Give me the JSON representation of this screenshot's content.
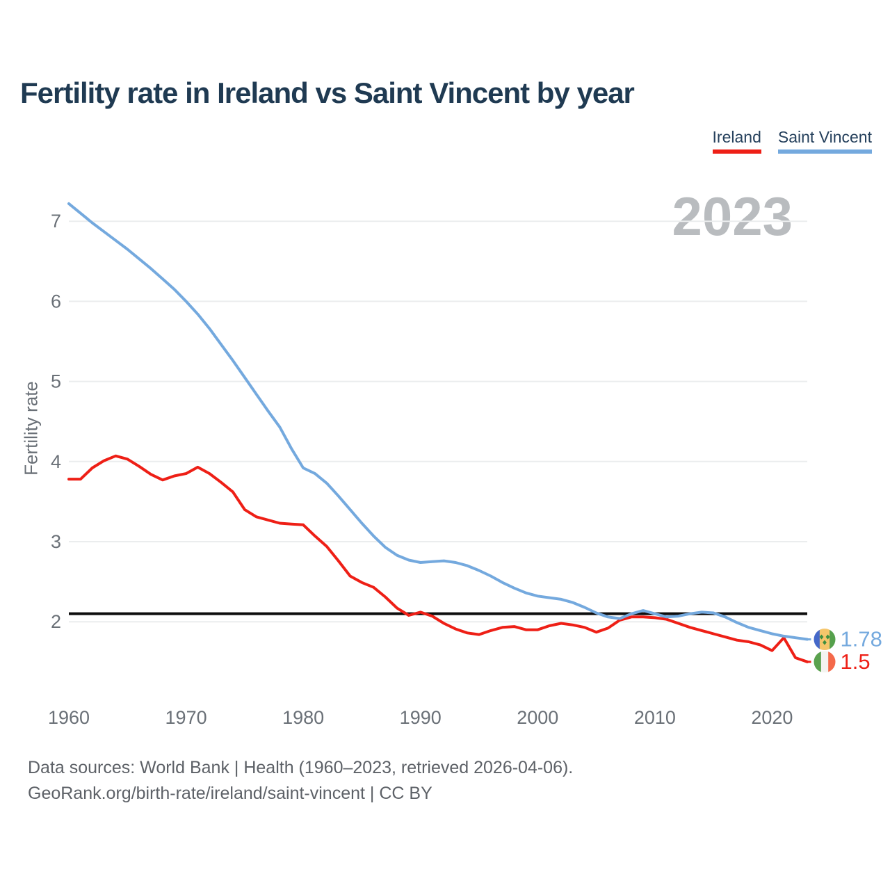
{
  "legend": {
    "items": [
      {
        "label": "Ireland",
        "color": "#ee1f16"
      },
      {
        "label": "Saint Vincent",
        "color": "#74a9de"
      }
    ]
  },
  "watermark": "2023",
  "footer": {
    "line1": "Data sources: World Bank | Health (1960–2023, retrieved 2026-04-06).",
    "line2": "GeoRank.org/birth-rate/ireland/saint-vincent | CC BY"
  },
  "end_labels": [
    {
      "series": "Saint Vincent",
      "value": "1.78",
      "color": "#74a9de",
      "flag_icon": "saint-vincent-flag-icon",
      "flag": {
        "stripes": [
          "#4468c9",
          "#f6c66b",
          "#55a04c"
        ],
        "widths": [
          0.27,
          0.46,
          0.27
        ],
        "diamond_color": "#3e8e3f"
      }
    },
    {
      "series": "Ireland",
      "value": "1.5",
      "color": "#ee1f16",
      "flag_icon": "ireland-flag-icon",
      "flag": {
        "stripes": [
          "#5aa14e",
          "#f4f4f1",
          "#f4694a"
        ],
        "widths": [
          0.333,
          0.334,
          0.333
        ]
      }
    }
  ],
  "chart_data": {
    "type": "line",
    "title": "Fertility rate in Ireland vs Saint Vincent by year",
    "xlabel": "",
    "ylabel": "Fertility rate",
    "xlim": [
      1960,
      2023
    ],
    "ylim": [
      1.4,
      7.35
    ],
    "grid": "horizontal",
    "legend_position": "top-right",
    "yticks": [
      2,
      3,
      4,
      5,
      6,
      7
    ],
    "xticks": [
      1960,
      1970,
      1980,
      1990,
      2000,
      2010,
      2020
    ],
    "reference_line": {
      "value": 2.1,
      "color": "#0d0d0d"
    },
    "x": [
      1960,
      1961,
      1962,
      1963,
      1964,
      1965,
      1966,
      1967,
      1968,
      1969,
      1970,
      1971,
      1972,
      1973,
      1974,
      1975,
      1976,
      1977,
      1978,
      1979,
      1980,
      1981,
      1982,
      1983,
      1984,
      1985,
      1986,
      1987,
      1988,
      1989,
      1990,
      1991,
      1992,
      1993,
      1994,
      1995,
      1996,
      1997,
      1998,
      1999,
      2000,
      2001,
      2002,
      2003,
      2004,
      2005,
      2006,
      2007,
      2008,
      2009,
      2010,
      2011,
      2012,
      2013,
      2014,
      2015,
      2016,
      2017,
      2018,
      2019,
      2020,
      2021,
      2022,
      2023
    ],
    "series": [
      {
        "name": "Ireland",
        "color": "#ee1f16",
        "values": [
          3.78,
          3.78,
          3.92,
          4.01,
          4.07,
          4.03,
          3.94,
          3.84,
          3.77,
          3.82,
          3.85,
          3.93,
          3.85,
          3.74,
          3.62,
          3.4,
          3.31,
          3.27,
          3.23,
          3.22,
          3.21,
          3.07,
          2.94,
          2.76,
          2.57,
          2.49,
          2.43,
          2.31,
          2.17,
          2.08,
          2.12,
          2.07,
          1.98,
          1.91,
          1.86,
          1.84,
          1.89,
          1.93,
          1.94,
          1.9,
          1.9,
          1.95,
          1.98,
          1.96,
          1.93,
          1.87,
          1.92,
          2.02,
          2.06,
          2.06,
          2.05,
          2.03,
          1.98,
          1.93,
          1.89,
          1.85,
          1.81,
          1.77,
          1.75,
          1.71,
          1.64,
          1.8,
          1.55,
          1.5
        ]
      },
      {
        "name": "Saint Vincent",
        "color": "#74a9de",
        "values": [
          7.22,
          7.1,
          6.98,
          6.87,
          6.76,
          6.65,
          6.53,
          6.41,
          6.28,
          6.15,
          6.0,
          5.84,
          5.66,
          5.46,
          5.26,
          5.05,
          4.84,
          4.63,
          4.43,
          4.16,
          3.92,
          3.85,
          3.73,
          3.57,
          3.4,
          3.23,
          3.07,
          2.93,
          2.83,
          2.77,
          2.74,
          2.75,
          2.76,
          2.74,
          2.7,
          2.64,
          2.57,
          2.49,
          2.42,
          2.36,
          2.32,
          2.3,
          2.28,
          2.24,
          2.18,
          2.11,
          2.06,
          2.04,
          2.1,
          2.14,
          2.1,
          2.06,
          2.07,
          2.1,
          2.12,
          2.11,
          2.06,
          1.99,
          1.93,
          1.89,
          1.85,
          1.82,
          1.8,
          1.78
        ]
      }
    ]
  }
}
